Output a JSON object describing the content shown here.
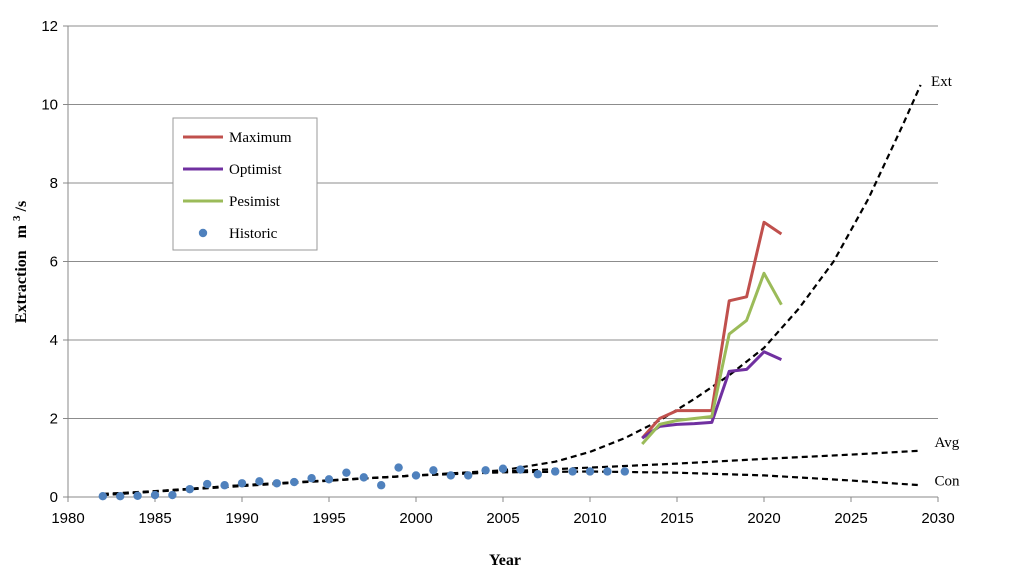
{
  "chart_data": {
    "type": "line",
    "title": "",
    "xlabel": "Year",
    "ylabel": "Extraction m³/s",
    "ylabel_main": "Extraction",
    "ylabel_unit_base": "m",
    "ylabel_unit_sup": "3",
    "ylabel_unit_tail": "/s",
    "xlim": [
      1980,
      2030
    ],
    "ylim": [
      0,
      12
    ],
    "x_ticks": [
      "1980",
      "1985",
      "1990",
      "1995",
      "2000",
      "2005",
      "2010",
      "2015",
      "2020",
      "2025",
      "2030"
    ],
    "y_ticks": [
      "0",
      "2",
      "4",
      "6",
      "8",
      "10",
      "12"
    ],
    "grid": "horizontal",
    "legend_position": "upper-left",
    "series": [
      {
        "name": "Maximum",
        "kind": "solid",
        "color": "#C0504D",
        "x": [
          2013,
          2014,
          2015,
          2016,
          2017,
          2018,
          2019,
          2020,
          2021
        ],
        "y": [
          1.5,
          2.0,
          2.2,
          2.2,
          2.2,
          5.0,
          5.1,
          7.0,
          6.7
        ]
      },
      {
        "name": "Optimist",
        "kind": "solid",
        "color": "#7030A0",
        "x": [
          2013,
          2014,
          2015,
          2016,
          2017,
          2018,
          2019,
          2020,
          2021
        ],
        "y": [
          1.5,
          1.8,
          1.85,
          1.87,
          1.9,
          3.2,
          3.25,
          3.7,
          3.5
        ]
      },
      {
        "name": "Pesimist",
        "kind": "solid",
        "color": "#9BBB59",
        "x": [
          2013,
          2014,
          2015,
          2016,
          2017,
          2018,
          2019,
          2020,
          2021
        ],
        "y": [
          1.35,
          1.85,
          1.95,
          2.0,
          2.05,
          4.15,
          4.5,
          5.7,
          4.9
        ]
      },
      {
        "name": "Historic",
        "kind": "scatter",
        "color": "#4F81BD",
        "x": [
          1982,
          1983,
          1984,
          1985,
          1986,
          1987,
          1988,
          1989,
          1990,
          1991,
          1992,
          1993,
          1994,
          1995,
          1996,
          1997,
          1998,
          1999,
          2000,
          2001,
          2002,
          2003,
          2004,
          2005,
          2006,
          2007,
          2008,
          2009,
          2010,
          2011,
          2012
        ],
        "y": [
          0.02,
          0.02,
          0.03,
          0.05,
          0.05,
          0.2,
          0.33,
          0.3,
          0.35,
          0.4,
          0.35,
          0.38,
          0.48,
          0.45,
          0.62,
          0.5,
          0.3,
          0.75,
          0.55,
          0.68,
          0.55,
          0.55,
          0.68,
          0.72,
          0.7,
          0.58,
          0.65,
          0.65,
          0.65,
          0.65,
          0.65
        ]
      },
      {
        "name": "Ext",
        "kind": "dashed",
        "color": "#000000",
        "x": [
          1982,
          1985,
          1990,
          1995,
          2000,
          2005,
          2008,
          2010,
          2012,
          2014,
          2016,
          2018,
          2020,
          2022,
          2024,
          2026,
          2028,
          2029
        ],
        "y": [
          0.08,
          0.15,
          0.3,
          0.42,
          0.55,
          0.68,
          0.9,
          1.15,
          1.5,
          1.95,
          2.5,
          3.1,
          3.8,
          4.8,
          6.0,
          7.6,
          9.5,
          10.5
        ]
      },
      {
        "name": "Avg",
        "kind": "dashed",
        "color": "#000000",
        "x": [
          1982,
          1990,
          2000,
          2005,
          2010,
          2015,
          2020,
          2025,
          2029
        ],
        "y": [
          0.05,
          0.28,
          0.55,
          0.65,
          0.75,
          0.85,
          0.97,
          1.08,
          1.18
        ]
      },
      {
        "name": "Con",
        "kind": "dashed",
        "color": "#000000",
        "x": [
          1982,
          1990,
          2000,
          2005,
          2010,
          2015,
          2020,
          2025,
          2029
        ],
        "y": [
          0.05,
          0.3,
          0.55,
          0.63,
          0.65,
          0.62,
          0.55,
          0.42,
          0.3
        ]
      }
    ],
    "annotations": [
      {
        "text": "Ext",
        "x": 2029.6,
        "y": 10.6
      },
      {
        "text": "Avg",
        "x": 2029.8,
        "y": 1.4
      },
      {
        "text": "Con",
        "x": 2029.8,
        "y": 0.42
      }
    ],
    "legend_entries": [
      "Maximum",
      "Optimist",
      "Pesimist",
      "Historic"
    ]
  }
}
